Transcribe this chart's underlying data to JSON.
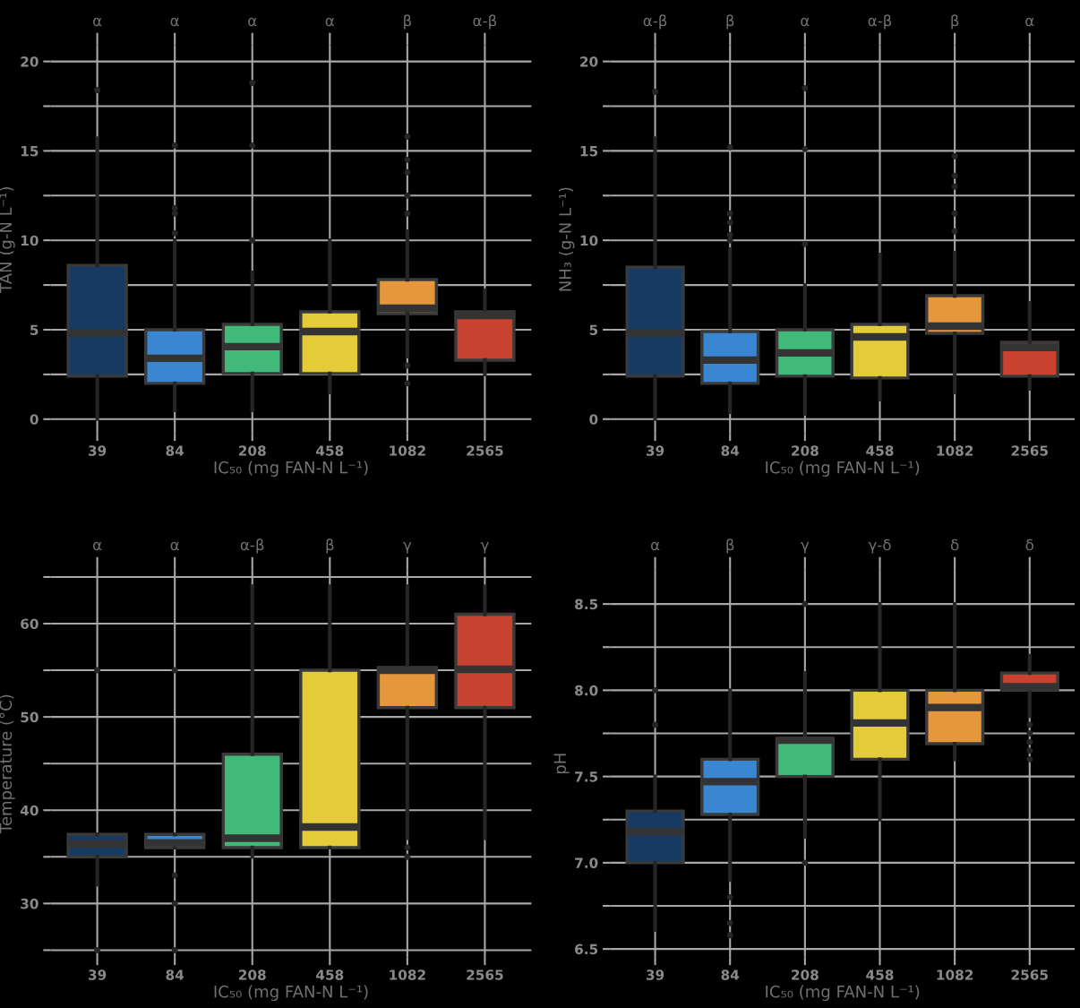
{
  "chart_data": [
    {
      "type": "box",
      "categories": [
        "39",
        "84",
        "208",
        "458",
        "1082",
        "2565"
      ],
      "xlabel": "IC₅₀ (mg FAN-N L⁻¹)",
      "ylabel": "TAN (g-N L⁻¹)",
      "ylim": [
        -0.8,
        20.9
      ],
      "yticks": [
        0,
        {
          "value": 2.5,
          "label": null
        },
        5,
        {
          "value": 7.5,
          "label": null
        },
        10,
        {
          "value": 12.5,
          "label": null
        },
        15,
        {
          "value": 17.5,
          "label": null
        },
        20
      ],
      "grid": true,
      "colors": [
        "#173a63",
        "#3b86d1",
        "#41b978",
        "#e3cb3a",
        "#e6973b",
        "#c9412f"
      ],
      "annotations": [
        {
          "text": "α",
          "x": "39"
        },
        {
          "text": "α",
          "x": "84"
        },
        {
          "text": "α",
          "x": "208"
        },
        {
          "text": "α",
          "x": "458"
        },
        {
          "text": "β",
          "x": "1082"
        },
        {
          "text": "α-β",
          "x": "2565"
        }
      ],
      "boxes": [
        {
          "low": 0,
          "q1": 2.4,
          "median": 4.8,
          "q3": 8.6,
          "high": 15.7,
          "outliers": [
            18.4
          ]
        },
        {
          "low": 0.5,
          "q1": 2.0,
          "median": 3.4,
          "q3": 5.0,
          "high": 10.0,
          "outliers": [
            10.4,
            11.5,
            11.8,
            15.3
          ]
        },
        {
          "low": 0.5,
          "q1": 2.55,
          "median": 4.05,
          "q3": 5.3,
          "high": 8.2,
          "outliers": [
            10.0,
            15.3,
            18.8
          ]
        },
        {
          "low": 1.5,
          "q1": 2.55,
          "median": 4.9,
          "q3": 6.0,
          "high": 10.0
        },
        {
          "low": 3.5,
          "q1": 5.9,
          "median": 6.2,
          "q3": 7.8,
          "high": 10.5,
          "outliers": [
            2.0,
            3.0,
            11.5,
            12.5,
            13.8,
            14.5,
            15.8
          ]
        },
        {
          "low": 2.5,
          "q1": 3.3,
          "median": 5.8,
          "q3": 6.0,
          "high": 7.2
        }
      ]
    },
    {
      "type": "box",
      "categories": [
        "39",
        "84",
        "208",
        "458",
        "1082",
        "2565"
      ],
      "xlabel": "IC₅₀ (mg FAN-N L⁻¹)",
      "ylabel": "NH₃ (g-N L⁻¹)",
      "ylim": [
        -0.8,
        20.9
      ],
      "yticks": [
        0,
        {
          "value": 2.5,
          "label": null
        },
        5,
        {
          "value": 7.5,
          "label": null
        },
        10,
        {
          "value": 12.5,
          "label": null
        },
        15,
        {
          "value": 17.5,
          "label": null
        },
        20
      ],
      "grid": true,
      "colors": [
        "#173a63",
        "#3b86d1",
        "#41b978",
        "#e3cb3a",
        "#e6973b",
        "#c9412f"
      ],
      "annotations": [
        {
          "text": "α-β",
          "x": "39"
        },
        {
          "text": "β",
          "x": "84"
        },
        {
          "text": "α",
          "x": "208"
        },
        {
          "text": "α-β",
          "x": "458"
        },
        {
          "text": "β",
          "x": "1082"
        },
        {
          "text": "α",
          "x": "2565"
        }
      ],
      "boxes": [
        {
          "low": 0,
          "q1": 2.4,
          "median": 4.8,
          "q3": 8.5,
          "high": 15.7,
          "outliers": [
            18.3
          ]
        },
        {
          "low": 0.4,
          "q1": 2.0,
          "median": 3.3,
          "q3": 4.9,
          "high": 9.5,
          "outliers": [
            10.0,
            10.3,
            11.0,
            11.5,
            15.2
          ]
        },
        {
          "low": 0.3,
          "q1": 2.4,
          "median": 3.7,
          "q3": 5.0,
          "high": 7.5,
          "outliers": [
            9.8,
            15.1,
            18.5
          ]
        },
        {
          "low": 1.1,
          "q1": 2.3,
          "median": 4.6,
          "q3": 5.3,
          "high": 9.2
        },
        {
          "low": 1.5,
          "q1": 4.8,
          "median": 5.2,
          "q3": 6.9,
          "high": 9.3,
          "outliers": [
            10.5,
            11.5,
            13.0,
            13.6,
            14.7
          ]
        },
        {
          "low": 1.7,
          "q1": 2.4,
          "median": 4.0,
          "q3": 4.3,
          "high": 6.5
        }
      ]
    },
    {
      "type": "box",
      "categories": [
        "39",
        "84",
        "208",
        "458",
        "1082",
        "2565"
      ],
      "xlabel": "IC₅₀ (mg FAN-N L⁻¹)",
      "ylabel": "Temperature (°C)",
      "ylim": [
        24.2,
        65.8
      ],
      "yticks": [
        {
          "value": 25,
          "label": null
        },
        30,
        {
          "value": 35,
          "label": null
        },
        40,
        {
          "value": 45,
          "label": null
        },
        50,
        {
          "value": 55,
          "label": null
        },
        60,
        {
          "value": 65,
          "label": null
        }
      ],
      "grid": true,
      "colors": [
        "#173a63",
        "#3b86d1",
        "#41b978",
        "#e3cb3a",
        "#e6973b",
        "#c9412f"
      ],
      "annotations": [
        {
          "text": "α",
          "x": "39"
        },
        {
          "text": "α",
          "x": "84"
        },
        {
          "text": "α-β",
          "x": "208"
        },
        {
          "text": "β",
          "x": "458"
        },
        {
          "text": "γ",
          "x": "1082"
        },
        {
          "text": "γ",
          "x": "2565"
        }
      ],
      "boxes": [
        {
          "low": 32,
          "q1": 35,
          "median": 36.4,
          "q3": 37.4,
          "high": 37.4,
          "outliers": [
            25,
            55
          ]
        },
        {
          "low": 36,
          "q1": 36,
          "median": 36.5,
          "q3": 37.4,
          "high": 37.4,
          "outliers": [
            25,
            30,
            33,
            55
          ]
        },
        {
          "low": 35,
          "q1": 36,
          "median": 37,
          "q3": 46,
          "high": 64
        },
        {
          "low": 36,
          "q1": 36,
          "median": 38.2,
          "q3": 55,
          "high": 64
        },
        {
          "low": 37,
          "q1": 51,
          "median": 55,
          "q3": 55.3,
          "high": 64,
          "outliers": [
            35,
            36
          ]
        },
        {
          "low": 37,
          "q1": 51,
          "median": 55.1,
          "q3": 61,
          "high": 64
        }
      ]
    },
    {
      "type": "box",
      "categories": [
        "39",
        "84",
        "208",
        "458",
        "1082",
        "2565"
      ],
      "xlabel": "IC₅₀ (mg FAN-N L⁻¹)",
      "ylabel": "pH",
      "ylim": [
        6.45,
        8.7
      ],
      "yticks": [
        6.5,
        {
          "value": 6.75,
          "label": null
        },
        {
          "value": 7,
          "label": "7.0"
        },
        {
          "value": 7.25,
          "label": null
        },
        7.5,
        {
          "value": 7.75,
          "label": null
        },
        {
          "value": 8,
          "label": "8.0"
        },
        {
          "value": 8.25,
          "label": null
        },
        8.5
      ],
      "grid": true,
      "colors": [
        "#173a63",
        "#3b86d1",
        "#41b978",
        "#e3cb3a",
        "#e6973b",
        "#c9412f"
      ],
      "annotations": [
        {
          "text": "α",
          "x": "39"
        },
        {
          "text": "β",
          "x": "84"
        },
        {
          "text": "γ",
          "x": "208"
        },
        {
          "text": "γ-δ",
          "x": "458"
        },
        {
          "text": "δ",
          "x": "1082"
        },
        {
          "text": "δ",
          "x": "2565"
        }
      ],
      "boxes": [
        {
          "low": 6.61,
          "q1": 7.0,
          "median": 7.18,
          "q3": 7.3,
          "high": 7.5,
          "outliers": [
            7.8,
            8.0
          ]
        },
        {
          "low": 6.9,
          "q1": 7.28,
          "median": 7.47,
          "q3": 7.6,
          "high": 8.0,
          "outliers": [
            6.58,
            6.65,
            6.8
          ]
        },
        {
          "low": 7.15,
          "q1": 7.5,
          "median": 7.71,
          "q3": 7.72,
          "high": 8.1,
          "outliers": [
            7.0,
            8.5
          ]
        },
        {
          "low": 7.25,
          "q1": 7.6,
          "median": 7.81,
          "q3": 8.0,
          "high": 8.5
        },
        {
          "low": 7.6,
          "q1": 7.69,
          "median": 7.9,
          "q3": 8.0,
          "high": 8.5
        },
        {
          "low": 7.85,
          "q1": 8.0,
          "median": 8.02,
          "q3": 8.1,
          "high": 8.2,
          "outliers": [
            7.6,
            7.65,
            7.7,
            7.75,
            7.8
          ]
        }
      ]
    }
  ]
}
